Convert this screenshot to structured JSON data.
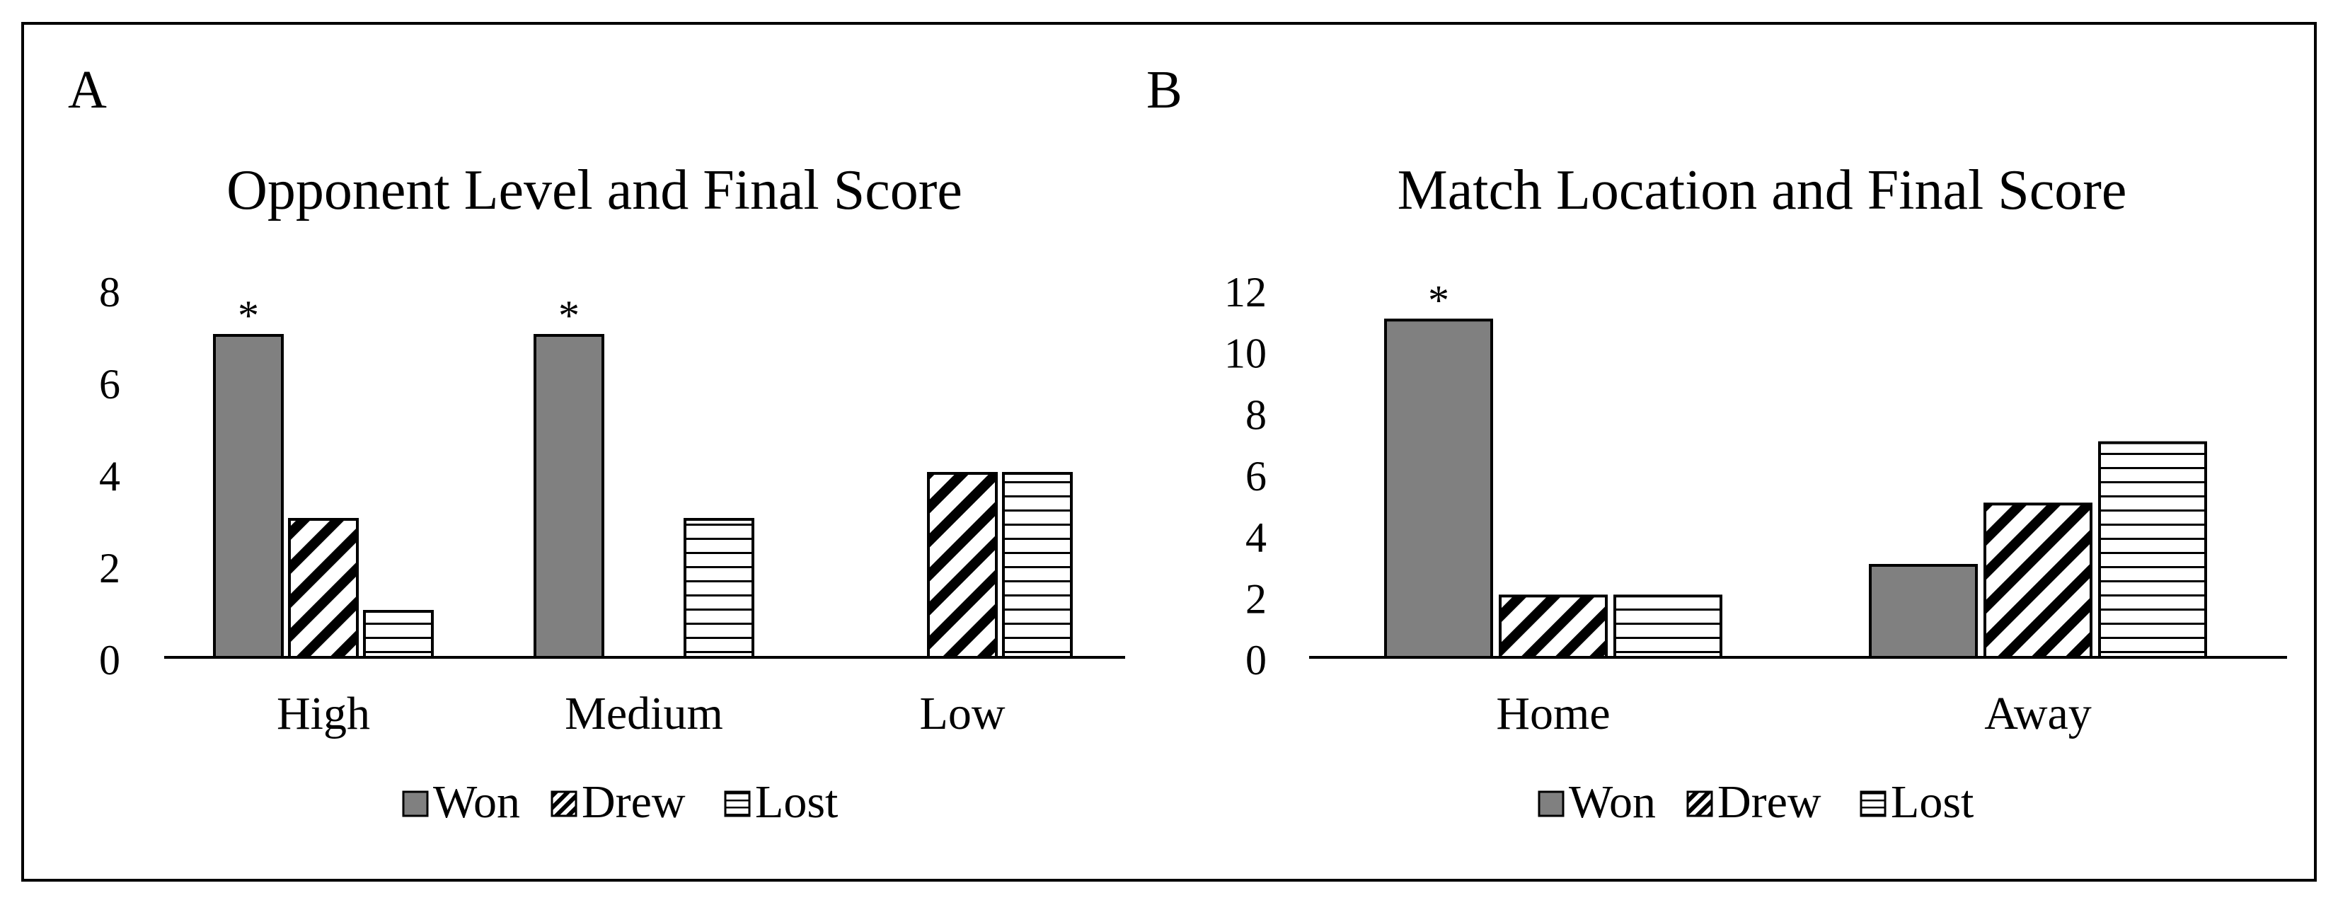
{
  "figure": {
    "panel_a_letter": "A",
    "panel_b_letter": "B"
  },
  "chart_data": [
    {
      "type": "bar",
      "title": "Opponent Level and Final Score",
      "categories": [
        "High",
        "Medium",
        "Low"
      ],
      "series": [
        {
          "name": "Won",
          "values": [
            7,
            7,
            0
          ],
          "color": "#808080",
          "pattern": "solid"
        },
        {
          "name": "Drew",
          "values": [
            3,
            0,
            4
          ],
          "color": "#000000",
          "pattern": "diagonal"
        },
        {
          "name": "Lost",
          "values": [
            1,
            3,
            4
          ],
          "color": "#000000",
          "pattern": "horizontal"
        }
      ],
      "annotations": [
        {
          "category": "High",
          "series": "Won",
          "text": "*"
        },
        {
          "category": "Medium",
          "series": "Won",
          "text": "*"
        }
      ],
      "yticks": [
        "0",
        "2",
        "4",
        "6",
        "8"
      ],
      "ylim": [
        0,
        8
      ],
      "xlabel": "",
      "ylabel": "",
      "grid": false,
      "legend": "bottom"
    },
    {
      "type": "bar",
      "title": "Match Location and Final Score",
      "categories": [
        "Home",
        "Away"
      ],
      "series": [
        {
          "name": "Won",
          "values": [
            11,
            3
          ],
          "color": "#808080",
          "pattern": "solid"
        },
        {
          "name": "Drew",
          "values": [
            2,
            5
          ],
          "color": "#000000",
          "pattern": "diagonal"
        },
        {
          "name": "Lost",
          "values": [
            2,
            7
          ],
          "color": "#000000",
          "pattern": "horizontal"
        }
      ],
      "annotations": [
        {
          "category": "Home",
          "series": "Won",
          "text": "*"
        }
      ],
      "yticks": [
        "0",
        "2",
        "4",
        "6",
        "8",
        "10",
        "12"
      ],
      "ylim": [
        0,
        12
      ],
      "xlabel": "",
      "ylabel": "",
      "grid": false,
      "legend": "bottom"
    }
  ]
}
